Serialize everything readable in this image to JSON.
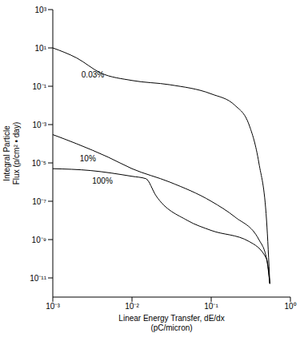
{
  "chart_data": {
    "type": "line",
    "log": true,
    "grid": false,
    "x_label": [
      "Linear Energy Transfer, dE/dx",
      "(pC/micron)"
    ],
    "y_label": [
      "Integral Particle",
      "Flux (p/cm² • day)"
    ],
    "xlim": [
      0.001,
      1
    ],
    "xticks": [
      {
        "value": 0.001,
        "label": "10⁻³"
      },
      {
        "value": 0.01,
        "label": "10⁻²"
      },
      {
        "value": 0.1,
        "label": "10⁻¹"
      },
      {
        "value": 1,
        "label": "10⁰"
      }
    ],
    "ylim": [
      1e-12,
      1000
    ],
    "yticks": [
      {
        "value": 1000,
        "label": "10³"
      },
      {
        "value": 10,
        "label": "10¹"
      },
      {
        "value": 0.1,
        "label": "10⁻¹"
      },
      {
        "value": 0.001,
        "label": "10⁻³"
      },
      {
        "value": 1e-05,
        "label": "10⁻⁵"
      },
      {
        "value": 1e-07,
        "label": "10⁻⁷"
      },
      {
        "value": 1e-09,
        "label": "10⁻⁹"
      },
      {
        "value": 1e-11,
        "label": "10⁻¹¹"
      }
    ],
    "series": [
      {
        "name": "0.03%",
        "color": "#000000",
        "x": [
          0.001,
          0.002,
          0.004,
          0.01,
          0.03,
          0.1,
          0.2,
          0.3,
          0.4,
          0.5,
          0.55
        ],
        "values": [
          10,
          3,
          0.5,
          0.2,
          0.12,
          0.04,
          0.01,
          0.001,
          1e-05,
          1e-08,
          5e-12
        ]
      },
      {
        "name": "10%",
        "color": "#000000",
        "x": [
          0.001,
          0.002,
          0.005,
          0.01,
          0.03,
          0.1,
          0.2,
          0.4,
          0.5,
          0.55
        ],
        "values": [
          0.0003,
          0.0001,
          2e-05,
          5e-06,
          1e-06,
          1e-07,
          1.5e-08,
          1e-09,
          1e-10,
          5e-12
        ]
      },
      {
        "name": "100%",
        "color": "#000000",
        "x": [
          0.001,
          0.003,
          0.01,
          0.015,
          0.02,
          0.05,
          0.1,
          0.3,
          0.5,
          0.55
        ],
        "values": [
          5e-06,
          4e-06,
          2e-06,
          1.5e-06,
          2e-07,
          1e-08,
          3e-09,
          8e-10,
          1e-10,
          5e-12
        ]
      }
    ]
  }
}
